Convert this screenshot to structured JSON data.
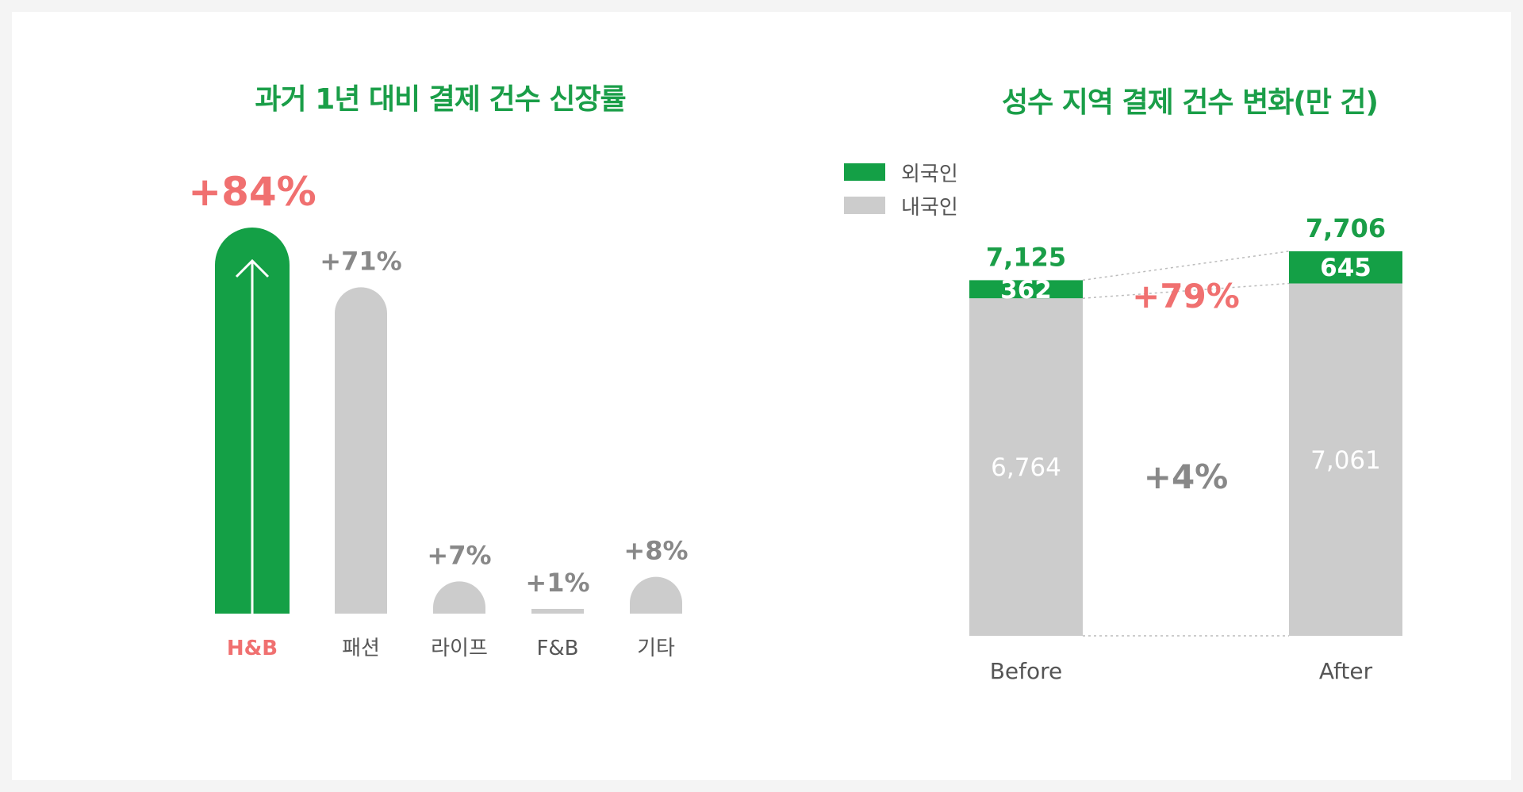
{
  "chart_data": [
    {
      "type": "bar",
      "title": "과거 1년 대비 결제 건수 신장률",
      "categories": [
        "H&B",
        "패션",
        "라이프",
        "F&B",
        "기타"
      ],
      "values": [
        84,
        71,
        7,
        1,
        8
      ],
      "value_labels": [
        "+84%",
        "+71%",
        "+7%",
        "+1%",
        "+8%"
      ],
      "highlight_category": "H&B",
      "unit": "%",
      "ylim": [
        0,
        84
      ],
      "grid": false,
      "colors": {
        "highlight": "#14a046",
        "default": "#cccccc",
        "highlight_label": "#f07070",
        "default_label": "#888888"
      }
    },
    {
      "type": "bar",
      "stacked": true,
      "title": "성수 지역 결제 건수 변화(만 건)",
      "categories": [
        "Before",
        "After"
      ],
      "series": [
        {
          "name": "외국인",
          "values": [
            362,
            645
          ],
          "color": "#14a046"
        },
        {
          "name": "내국인",
          "values": [
            6764,
            7061
          ],
          "color": "#cccccc"
        }
      ],
      "totals": [
        7125,
        7706
      ],
      "total_labels": [
        "7,125",
        "7,706"
      ],
      "segment_labels": {
        "외국인": [
          "362",
          "645"
        ],
        "내국인": [
          "6,764",
          "7,061"
        ]
      },
      "change_labels": {
        "외국인": "+79%",
        "내국인": "+4%"
      },
      "legend_position": "top-left",
      "grid": false
    }
  ]
}
